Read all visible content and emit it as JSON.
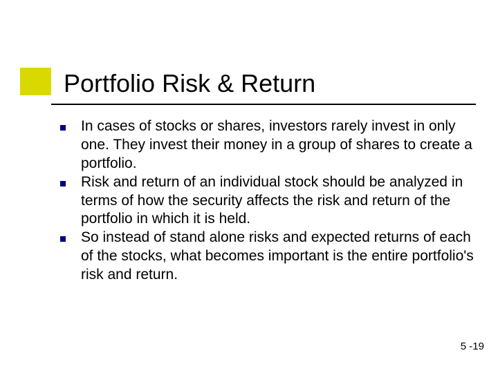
{
  "slide": {
    "title": "Portfolio Risk & Return",
    "accent_color": "#d9d900",
    "underline_color": "#000000",
    "bullet_color": "#000080",
    "title_fontsize": 36,
    "body_fontsize": 21,
    "background_color": "#ffffff",
    "text_color": "#000000",
    "bullets": [
      "In cases of stocks or shares, investors rarely invest in only one. They invest their money in a group of shares to create a portfolio.",
      "Risk and return of an individual stock should be analyzed in terms of how the security affects the risk and return of the portfolio in which it is held.",
      "So instead of stand alone risks and expected returns of each of the stocks, what becomes important is the entire portfolio's risk and return."
    ],
    "page_number": "5 -19"
  }
}
